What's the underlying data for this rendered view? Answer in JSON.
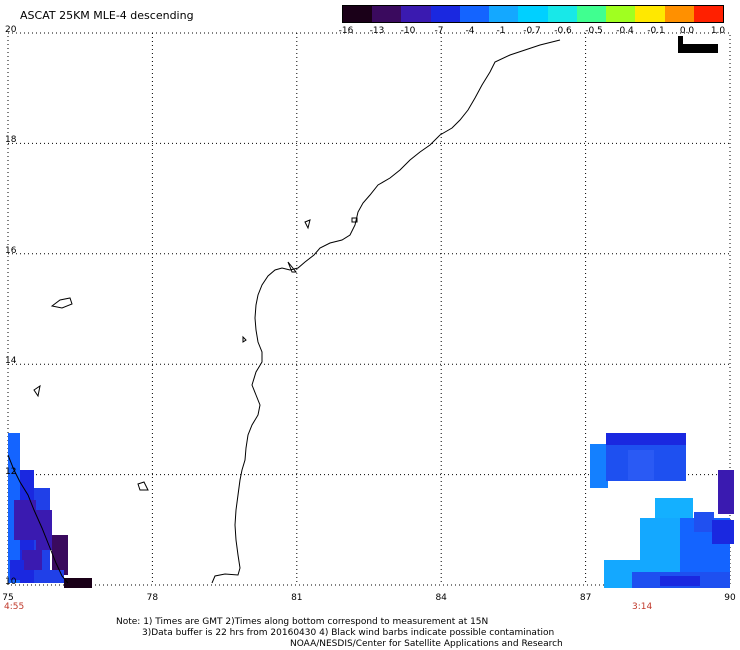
{
  "title": "ASCAT 25KM MLE-4 descending",
  "colorbar": {
    "labels": [
      "-16",
      "-13",
      "-10",
      "-7",
      "-4",
      "-1",
      "-0.7",
      "-0.6",
      "-0.5",
      "-0.4",
      "-0.1",
      "0.0",
      "1.0"
    ],
    "colors": [
      "#1a0018",
      "#3a0a5e",
      "#3a1ab0",
      "#1a28e0",
      "#1464ff",
      "#14a8ff",
      "#00d0ff",
      "#18e8e8",
      "#40ff90",
      "#a0ff20",
      "#ffe800",
      "#ff9000",
      "#ff2000"
    ]
  },
  "axes": {
    "lat_labels": [
      "20",
      "18",
      "16",
      "14",
      "12",
      "10"
    ],
    "lon_labels": [
      "75",
      "78",
      "81",
      "84",
      "87",
      "90"
    ]
  },
  "times": {
    "left": "4:55",
    "right": "3:14"
  },
  "notes": [
    "Note: 1) Times are GMT 2)Times along bottom correspond to measurement at 15N",
    "3)Data buffer is 22 hrs from 20160430 4) Black wind barbs indicate possible contamination",
    "NOAA/NESDIS/Center for Satellite Applications and Research"
  ]
}
